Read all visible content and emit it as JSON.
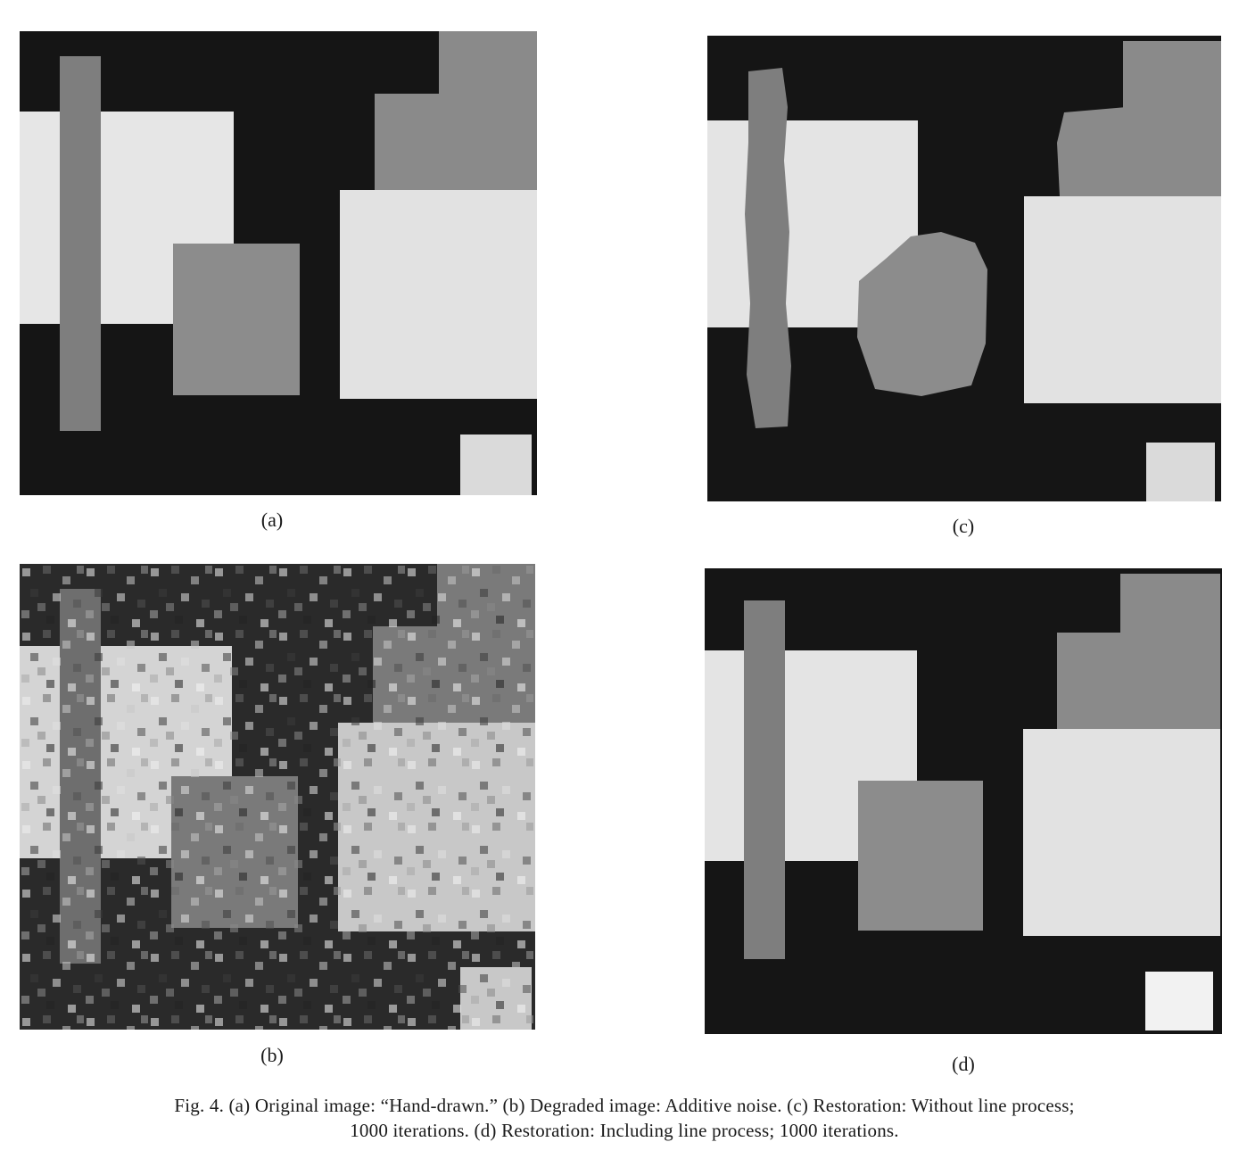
{
  "panels": [
    {
      "id": "a",
      "label": "(a)"
    },
    {
      "id": "b",
      "label": "(b)"
    },
    {
      "id": "c",
      "label": "(c)"
    },
    {
      "id": "d",
      "label": "(d)"
    }
  ],
  "caption": {
    "line1": "Fig. 4.  (a) Original image: “Hand-drawn.”  (b) Degraded image: Additive noise.  (c) Restoration: Without line process;",
    "line2": "1000 iterations.  (d) Restoration: Including line process; 1000 iterations."
  }
}
